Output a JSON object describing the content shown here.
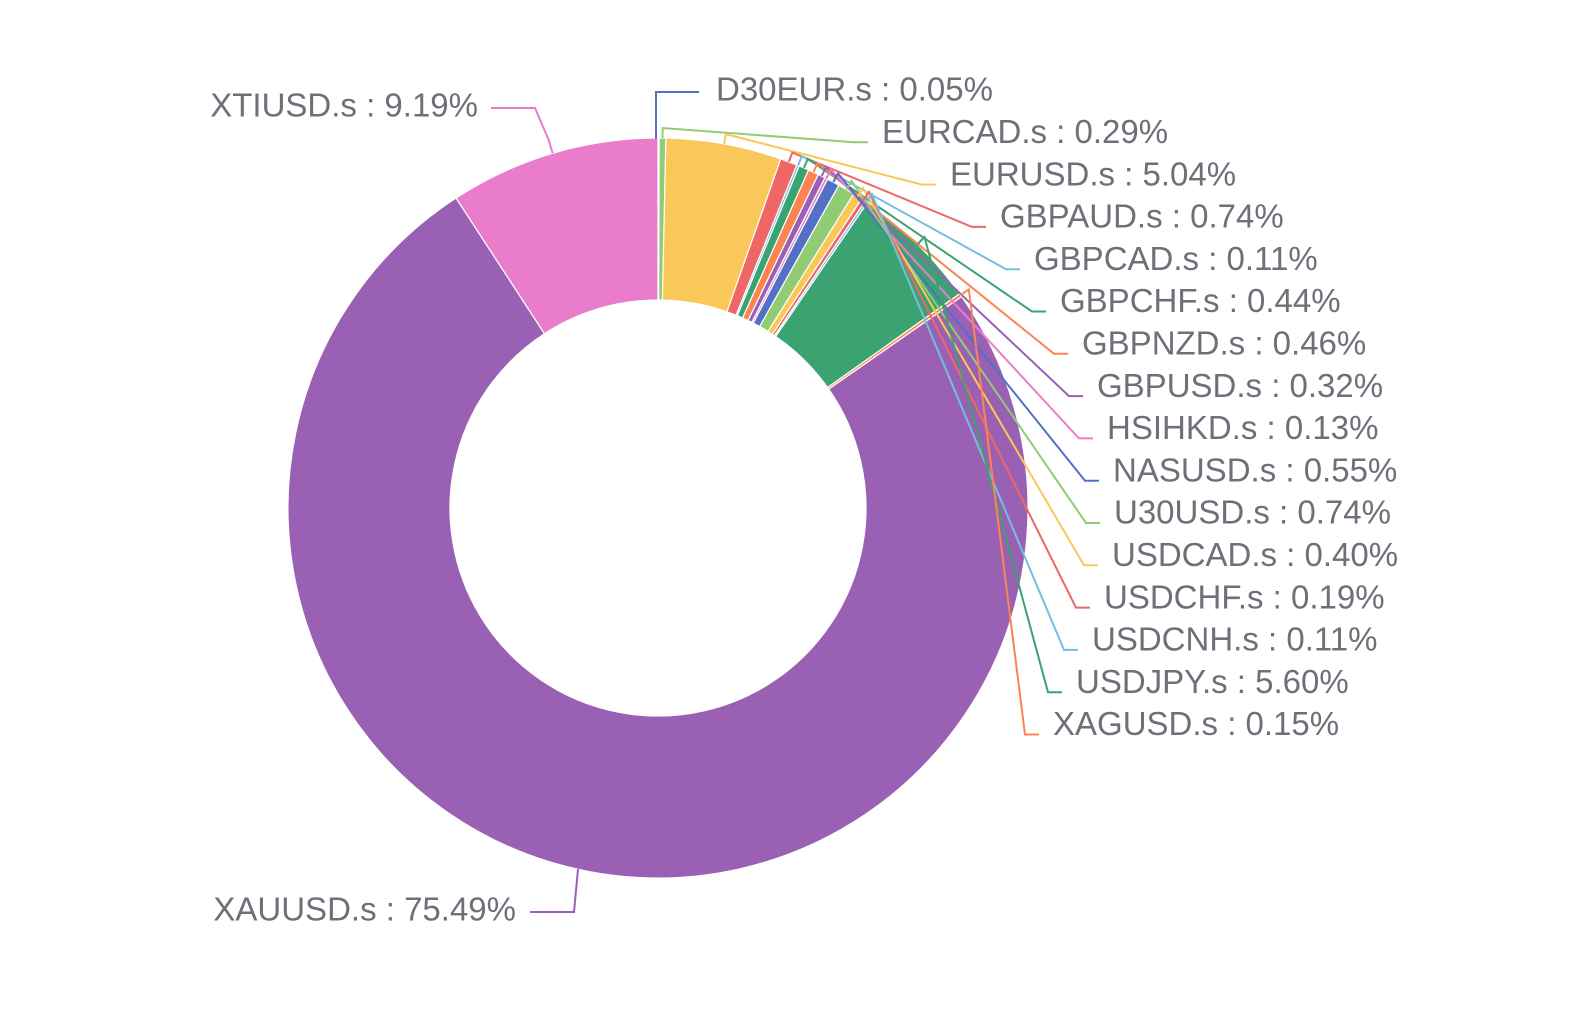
{
  "chart_data": {
    "type": "pie",
    "style": "donut",
    "label_format": "{name} : {percent}",
    "slices": [
      {
        "name": "D30EUR.s",
        "percent": "0.05%",
        "value": 0.05,
        "color": "#5470c6"
      },
      {
        "name": "EURCAD.s",
        "percent": "0.29%",
        "value": 0.29,
        "color": "#91cc75"
      },
      {
        "name": "EURUSD.s",
        "percent": "5.04%",
        "value": 5.04,
        "color": "#fac858"
      },
      {
        "name": "GBPAUD.s",
        "percent": "0.74%",
        "value": 0.74,
        "color": "#ee6666"
      },
      {
        "name": "GBPCAD.s",
        "percent": "0.11%",
        "value": 0.11,
        "color": "#73c0de"
      },
      {
        "name": "GBPCHF.s",
        "percent": "0.44%",
        "value": 0.44,
        "color": "#3ba272"
      },
      {
        "name": "GBPNZD.s",
        "percent": "0.46%",
        "value": 0.46,
        "color": "#fc8452"
      },
      {
        "name": "GBPUSD.s",
        "percent": "0.32%",
        "value": 0.32,
        "color": "#9a60b4"
      },
      {
        "name": "HSIHKD.s",
        "percent": "0.13%",
        "value": 0.13,
        "color": "#ea7ccc"
      },
      {
        "name": "NASUSD.s",
        "percent": "0.55%",
        "value": 0.55,
        "color": "#5470c6"
      },
      {
        "name": "U30USD.s",
        "percent": "0.74%",
        "value": 0.74,
        "color": "#91cc75"
      },
      {
        "name": "USDCAD.s",
        "percent": "0.40%",
        "value": 0.4,
        "color": "#fac858"
      },
      {
        "name": "USDCHF.s",
        "percent": "0.19%",
        "value": 0.19,
        "color": "#ee6666"
      },
      {
        "name": "USDCNH.s",
        "percent": "0.11%",
        "value": 0.11,
        "color": "#73c0de"
      },
      {
        "name": "USDJPY.s",
        "percent": "5.60%",
        "value": 5.6,
        "color": "#3ba272"
      },
      {
        "name": "XAGUSD.s",
        "percent": "0.15%",
        "value": 0.15,
        "color": "#fc8452"
      },
      {
        "name": "XAUUSD.s",
        "percent": "75.49%",
        "value": 75.49,
        "color": "#9a60b4"
      },
      {
        "name": "XTIUSD.s",
        "percent": "9.19%",
        "value": 9.19,
        "color": "#ea7ccc"
      }
    ]
  }
}
